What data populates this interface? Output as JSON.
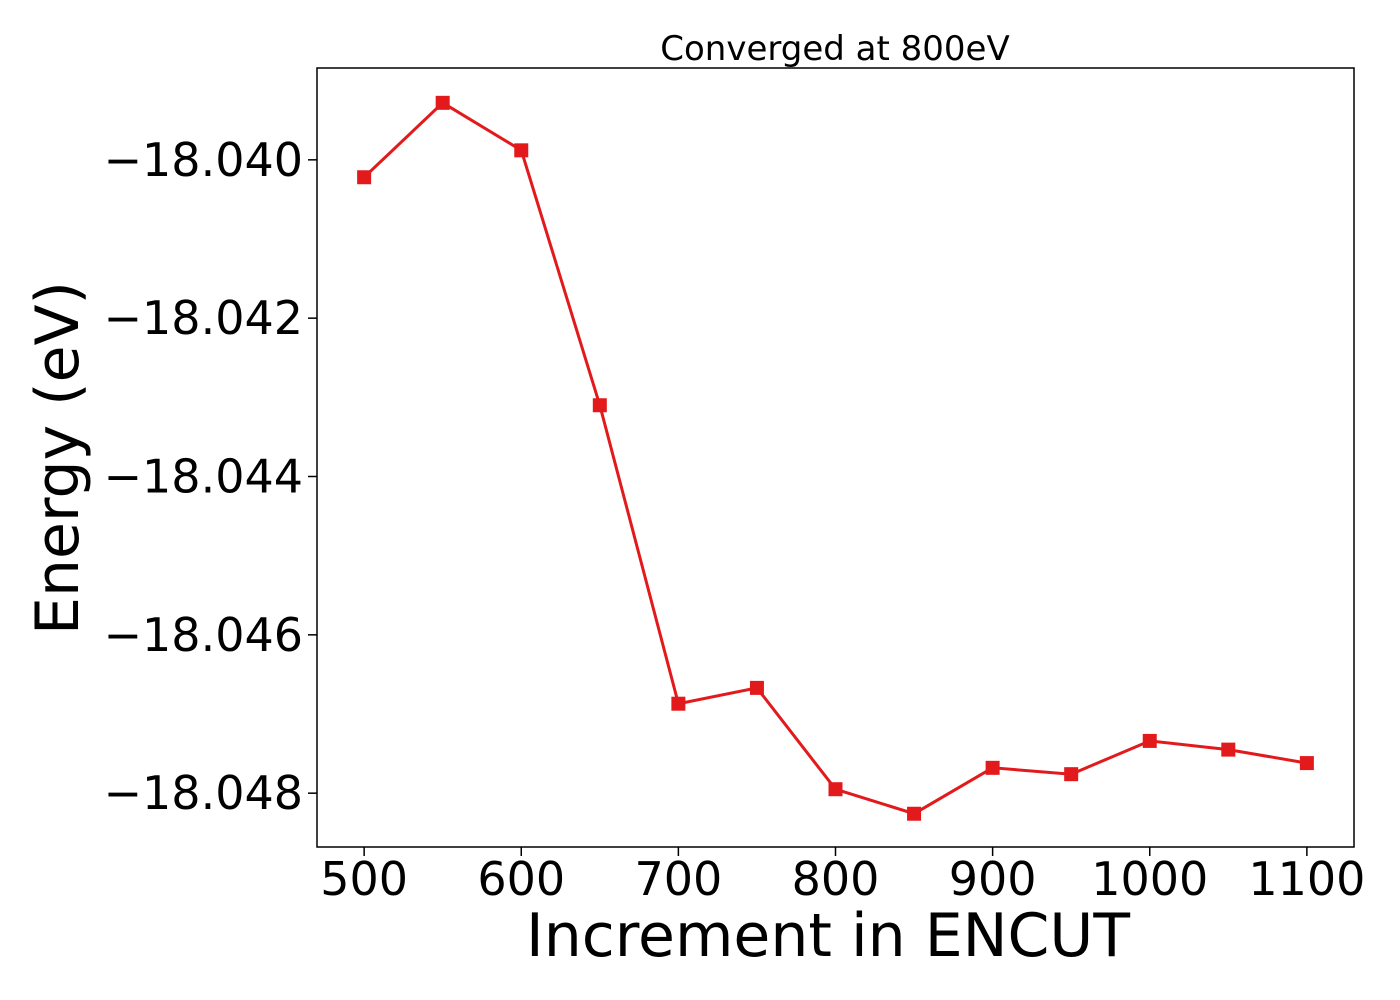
{
  "chart_data": {
    "type": "line",
    "title": "Converged at 800eV",
    "xlabel": "Increment in ENCUT",
    "ylabel": "Energy (eV)",
    "x": [
      500,
      550,
      600,
      650,
      700,
      750,
      800,
      850,
      900,
      950,
      1000,
      1050,
      1100
    ],
    "series": [
      {
        "values": [
          -18.04022,
          -18.03928,
          -18.03988,
          -18.0431,
          -18.04687,
          -18.04667,
          -18.04795,
          -18.04826,
          -18.04768,
          -18.04776,
          -18.04734,
          -18.04745,
          -18.04762
        ],
        "color": "#e31a1c",
        "marker": "square"
      }
    ],
    "xlim": [
      470,
      1130
    ],
    "ylim": [
      -18.04868,
      -18.03884
    ],
    "xticks": [
      500,
      600,
      700,
      800,
      900,
      1000,
      1100
    ],
    "xtick_labels": [
      "500",
      "600",
      "700",
      "800",
      "900",
      "1000",
      "1100"
    ],
    "yticks": [
      -18.04,
      -18.042,
      -18.044,
      -18.046,
      -18.048
    ],
    "ytick_labels": [
      "−18.040",
      "−18.042",
      "−18.044",
      "−18.046",
      "−18.048"
    ],
    "grid": false,
    "legend": "none"
  }
}
